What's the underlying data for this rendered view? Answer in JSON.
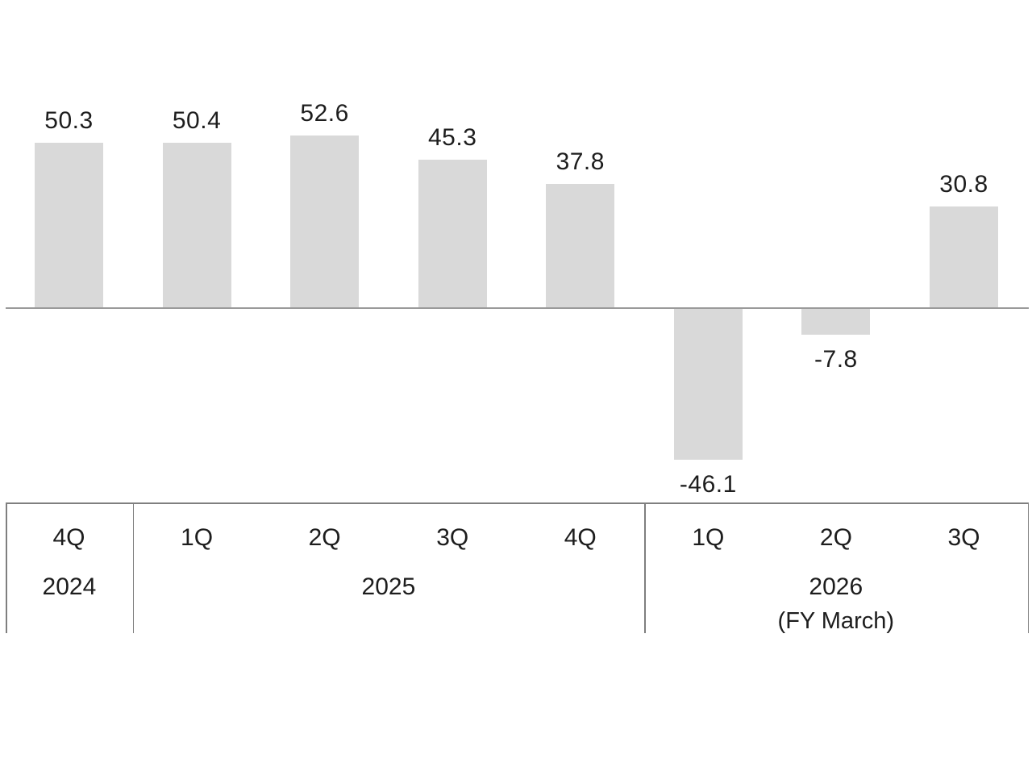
{
  "chart_data": {
    "type": "bar",
    "title": "",
    "xlabel": "",
    "ylabel": "",
    "categories": [
      "4Q",
      "1Q",
      "2Q",
      "3Q",
      "4Q",
      "1Q",
      "2Q",
      "3Q"
    ],
    "values": [
      50.3,
      50.4,
      52.6,
      45.3,
      37.8,
      -46.1,
      -7.8,
      30.8
    ],
    "data_labels": [
      "50.3",
      "50.4",
      "52.6",
      "45.3",
      "37.8",
      "-46.1",
      "-7.8",
      "30.8"
    ],
    "year_groups": [
      {
        "label": "2024",
        "sublabel": "",
        "quarters": 1
      },
      {
        "label": "2025",
        "sublabel": "",
        "quarters": 4
      },
      {
        "label": "2026",
        "sublabel": "(FY March)",
        "quarters": 3
      }
    ],
    "ylim": [
      -60,
      60
    ],
    "grid": false,
    "legend": false,
    "colors": {
      "bar_fill": "#d9d9d9",
      "axis_line": "#9a9a9a",
      "table_border": "#7f7f7f",
      "label_text": "#1d1d1d"
    }
  }
}
